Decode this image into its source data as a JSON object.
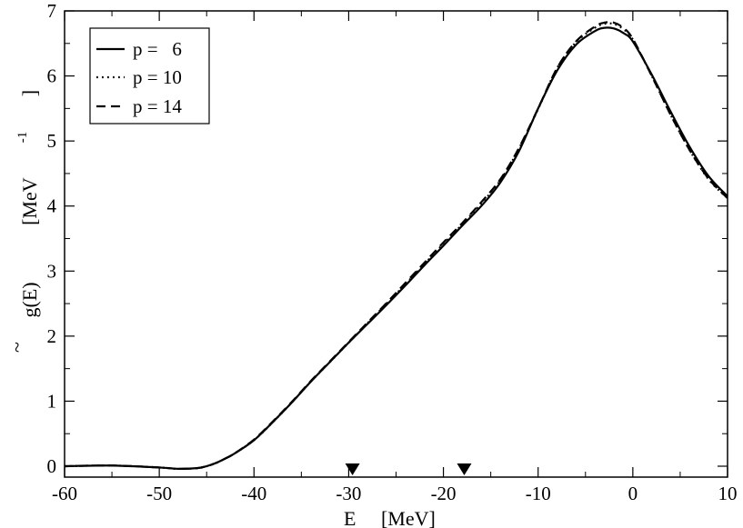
{
  "chart_data": {
    "type": "line",
    "xlabel": "E     [MeV]",
    "ylabel_main": "g(E)",
    "ylabel_tilde": "~",
    "ylabel_units": "[MeV",
    "ylabel_exp": "-1",
    "ylabel_close": "]",
    "xlim": [
      -60,
      10
    ],
    "ylim": [
      -0.1,
      7
    ],
    "x_ticks": [
      "-60",
      "-50",
      "-40",
      "-30",
      "-20",
      "-10",
      "0",
      "10"
    ],
    "x_tick_values": [
      -60,
      -50,
      -40,
      -30,
      -20,
      -10,
      0,
      10
    ],
    "y_ticks": [
      "0",
      "1",
      "2",
      "3",
      "4",
      "5",
      "6",
      "7"
    ],
    "y_tick_values": [
      0,
      1,
      2,
      3,
      4,
      5,
      6,
      7
    ],
    "legend_position": "top-left",
    "grid": false,
    "markers": [
      {
        "shape": "down-triangle",
        "x": -29.6,
        "y": 0
      },
      {
        "shape": "down-triangle",
        "x": -17.8,
        "y": 0
      }
    ],
    "x": [
      -60,
      -55,
      -50,
      -48,
      -46,
      -45,
      -44,
      -43,
      -42,
      -40,
      -38,
      -36,
      -34,
      -32,
      -30,
      -28,
      -26,
      -24,
      -22,
      -20,
      -18,
      -16,
      -14,
      -12,
      -10,
      -8,
      -6,
      -4,
      -3,
      -2,
      -1,
      0,
      2,
      4,
      6,
      8,
      10
    ],
    "series": [
      {
        "name": "p =   6",
        "style": "solid",
        "values": [
          0.0,
          0.01,
          -0.02,
          -0.04,
          -0.03,
          0.0,
          0.05,
          0.12,
          0.2,
          0.4,
          0.68,
          0.98,
          1.3,
          1.6,
          1.9,
          2.19,
          2.48,
          2.78,
          3.09,
          3.39,
          3.7,
          4.0,
          4.36,
          4.85,
          5.5,
          6.08,
          6.48,
          6.69,
          6.74,
          6.73,
          6.66,
          6.53,
          6.02,
          5.45,
          4.91,
          4.46,
          4.15
        ]
      },
      {
        "name": "p = 10",
        "style": "dotted",
        "values": [
          0.0,
          0.01,
          -0.02,
          -0.04,
          -0.03,
          0.0,
          0.05,
          0.12,
          0.2,
          0.4,
          0.68,
          0.98,
          1.3,
          1.6,
          1.9,
          2.2,
          2.5,
          2.8,
          3.11,
          3.42,
          3.72,
          4.04,
          4.39,
          4.89,
          5.49,
          6.12,
          6.52,
          6.74,
          6.8,
          6.8,
          6.72,
          6.56,
          6.0,
          5.4,
          4.86,
          4.41,
          4.12
        ]
      },
      {
        "name": "p = 14",
        "style": "dashed",
        "values": [
          0.0,
          0.01,
          -0.02,
          -0.04,
          -0.03,
          0.0,
          0.05,
          0.12,
          0.2,
          0.41,
          0.69,
          0.99,
          1.31,
          1.61,
          1.91,
          2.21,
          2.51,
          2.82,
          3.13,
          3.44,
          3.74,
          4.06,
          4.41,
          4.9,
          5.5,
          6.12,
          6.53,
          6.76,
          6.82,
          6.82,
          6.74,
          6.57,
          6.0,
          5.4,
          4.86,
          4.42,
          4.12
        ]
      }
    ]
  }
}
